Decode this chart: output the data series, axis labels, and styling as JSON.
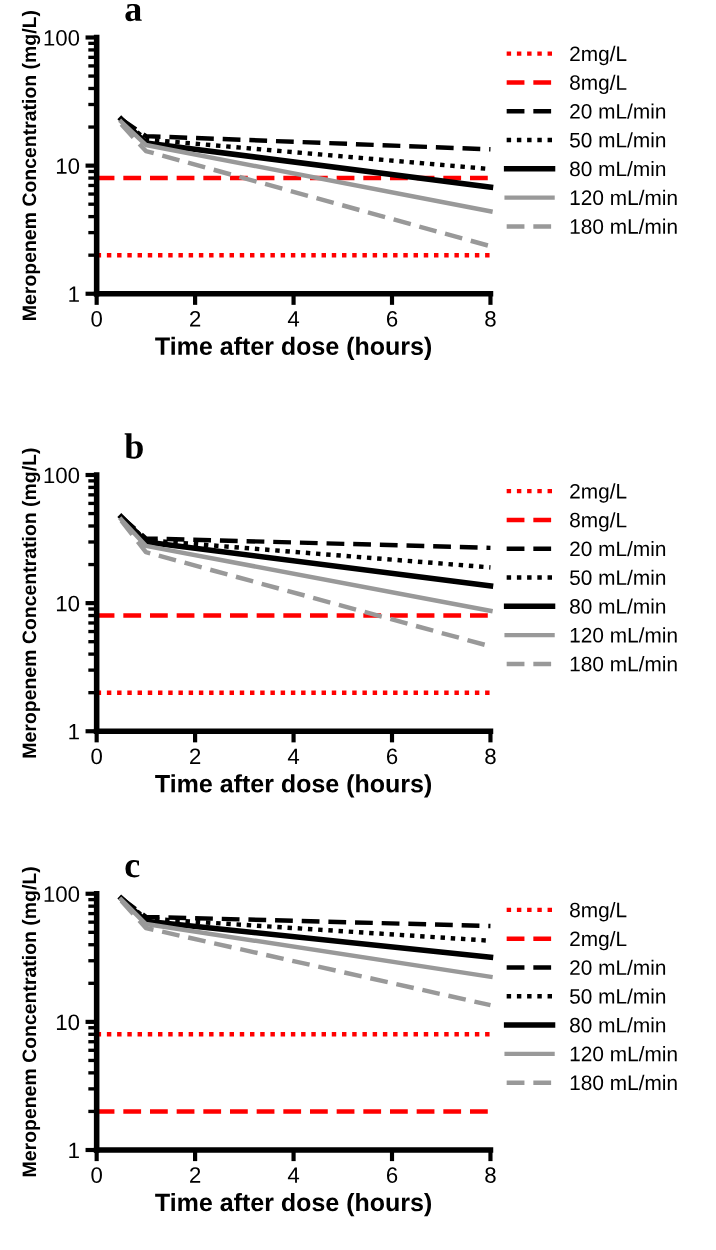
{
  "chart_data": [
    {
      "type": "line",
      "title": "a",
      "xlabel": "Time after dose (hours)",
      "ylabel": "Meropenem Concentration (mg/L)",
      "log": "y",
      "xlim": [
        0,
        8
      ],
      "xticks": [
        0,
        2,
        4,
        6,
        8
      ],
      "ylim": [
        1,
        100
      ],
      "yticks": [
        1,
        10,
        100
      ],
      "legend": "right",
      "grid": false,
      "marker": "none",
      "series": [
        {
          "name": "2mg/L",
          "color": "#ff0000",
          "line_style": "dotted",
          "x": [
            0,
            8
          ],
          "values": [
            2,
            2
          ]
        },
        {
          "name": "8mg/L",
          "color": "#ff0000",
          "line_style": "dashed",
          "x": [
            0,
            8
          ],
          "values": [
            8,
            8
          ]
        },
        {
          "name": "20 mL/min",
          "color": "#000000",
          "line_style": "dashed",
          "x": [
            0.5,
            1,
            8
          ],
          "values": [
            23,
            17,
            13.4
          ]
        },
        {
          "name": "50 mL/min",
          "color": "#000000",
          "line_style": "dotted",
          "x": [
            0.5,
            1,
            8
          ],
          "values": [
            23,
            16,
            9.4
          ]
        },
        {
          "name": "80 mL/min",
          "color": "#000000",
          "line_style": "solid",
          "x": [
            0.5,
            1,
            8
          ],
          "values": [
            23,
            15,
            6.8
          ]
        },
        {
          "name": "120 mL/min",
          "color": "#999999",
          "line_style": "solid",
          "x": [
            0.5,
            1,
            8
          ],
          "values": [
            22,
            14.5,
            4.4
          ]
        },
        {
          "name": "180 mL/min",
          "color": "#999999",
          "line_style": "dashed",
          "x": [
            0.5,
            1,
            8
          ],
          "values": [
            21,
            13,
            2.35
          ]
        }
      ]
    },
    {
      "type": "line",
      "title": "b",
      "xlabel": "Time after dose (hours)",
      "ylabel": "Meropenem Concentration (mg/L)",
      "log": "y",
      "xlim": [
        0,
        8
      ],
      "xticks": [
        0,
        2,
        4,
        6,
        8
      ],
      "ylim": [
        1,
        100
      ],
      "yticks": [
        1,
        10,
        100
      ],
      "legend": "right",
      "grid": false,
      "marker": "none",
      "series": [
        {
          "name": "2mg/L",
          "color": "#ff0000",
          "line_style": "dotted",
          "x": [
            0,
            8
          ],
          "values": [
            2,
            2
          ]
        },
        {
          "name": "8mg/L",
          "color": "#ff0000",
          "line_style": "dashed",
          "x": [
            0,
            8
          ],
          "values": [
            8,
            8
          ]
        },
        {
          "name": "20 mL/min",
          "color": "#000000",
          "line_style": "dashed",
          "x": [
            0.5,
            1,
            8
          ],
          "values": [
            47,
            32,
            27
          ]
        },
        {
          "name": "50 mL/min",
          "color": "#000000",
          "line_style": "dotted",
          "x": [
            0.5,
            1,
            8
          ],
          "values": [
            47,
            31,
            19
          ]
        },
        {
          "name": "80 mL/min",
          "color": "#000000",
          "line_style": "solid",
          "x": [
            0.5,
            1,
            8
          ],
          "values": [
            47,
            30,
            13.6
          ]
        },
        {
          "name": "120 mL/min",
          "color": "#999999",
          "line_style": "solid",
          "x": [
            0.5,
            1,
            8
          ],
          "values": [
            45,
            28,
            8.7
          ]
        },
        {
          "name": "180 mL/min",
          "color": "#999999",
          "line_style": "dashed",
          "x": [
            0.5,
            1,
            8
          ],
          "values": [
            44,
            25,
            4.6
          ]
        }
      ]
    },
    {
      "type": "line",
      "title": "c",
      "xlabel": "Time after dose (hours)",
      "ylabel": "Meropenem Concentration (mg/L)",
      "log": "y",
      "xlim": [
        0,
        8
      ],
      "xticks": [
        0,
        2,
        4,
        6,
        8
      ],
      "ylim": [
        1,
        100
      ],
      "yticks": [
        1,
        10,
        100
      ],
      "legend": "right",
      "grid": false,
      "marker": "none",
      "series": [
        {
          "name": "8mg/L",
          "color": "#ff0000",
          "line_style": "dotted",
          "x": [
            0,
            8
          ],
          "values": [
            8,
            8
          ]
        },
        {
          "name": "2mg/L",
          "color": "#ff0000",
          "line_style": "dashed",
          "x": [
            0,
            8
          ],
          "values": [
            2,
            2
          ]
        },
        {
          "name": "20 mL/min",
          "color": "#000000",
          "line_style": "dashed",
          "x": [
            0.5,
            1,
            8
          ],
          "values": [
            92,
            66,
            56
          ]
        },
        {
          "name": "50 mL/min",
          "color": "#000000",
          "line_style": "dotted",
          "x": [
            0.5,
            1,
            8
          ],
          "values": [
            92,
            64,
            43
          ]
        },
        {
          "name": "80 mL/min",
          "color": "#000000",
          "line_style": "solid",
          "x": [
            0.5,
            1,
            8
          ],
          "values": [
            92,
            61,
            32
          ]
        },
        {
          "name": "120 mL/min",
          "color": "#999999",
          "line_style": "solid",
          "x": [
            0.5,
            1,
            8
          ],
          "values": [
            90,
            58,
            22.5
          ]
        },
        {
          "name": "180 mL/min",
          "color": "#999999",
          "line_style": "dashed",
          "x": [
            0.5,
            1,
            8
          ],
          "values": [
            88,
            54,
            13.5
          ]
        }
      ]
    }
  ]
}
